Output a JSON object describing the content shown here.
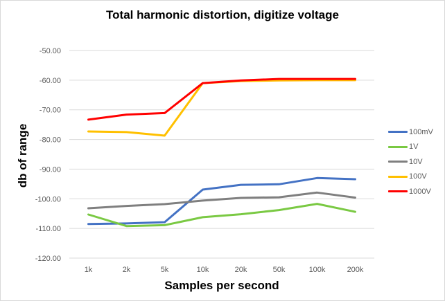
{
  "chart_data": {
    "type": "line",
    "title": "Total harmonic distortion, digitize voltage",
    "xlabel": "Samples per second",
    "ylabel": "db of range",
    "categories": [
      "1k",
      "2k",
      "5k",
      "10k",
      "20k",
      "50k",
      "100k",
      "200k"
    ],
    "ylim": [
      -120,
      -50
    ],
    "yticks": [
      "-50.00",
      "-60.00",
      "-70.00",
      "-80.00",
      "-90.00",
      "-100.00",
      "-110.00",
      "-120.00"
    ],
    "grid": true,
    "legend_position": "right",
    "series": [
      {
        "name": "100mV",
        "color": "#4472c4",
        "values": [
          -108.5,
          -108.3,
          -107.9,
          -96.9,
          -95.3,
          -95.1,
          -93.0,
          -93.4
        ]
      },
      {
        "name": "1V",
        "color": "#7ac943",
        "values": [
          -105.3,
          -109.2,
          -108.9,
          -106.2,
          -105.2,
          -103.8,
          -101.7,
          -104.4
        ]
      },
      {
        "name": "10V",
        "color": "#7f7f7f",
        "values": [
          -103.2,
          -102.4,
          -101.8,
          -100.6,
          -99.7,
          -99.5,
          -97.9,
          -99.6
        ]
      },
      {
        "name": "100V",
        "color": "#ffc000",
        "values": [
          -77.3,
          -77.5,
          -78.7,
          -61.0,
          -60.3,
          -60.1,
          -60.0,
          -60.0
        ]
      },
      {
        "name": "1000V",
        "color": "#ff0000",
        "values": [
          -73.3,
          -71.6,
          -71.1,
          -61.0,
          -60.1,
          -59.6,
          -59.6,
          -59.6
        ]
      }
    ]
  }
}
